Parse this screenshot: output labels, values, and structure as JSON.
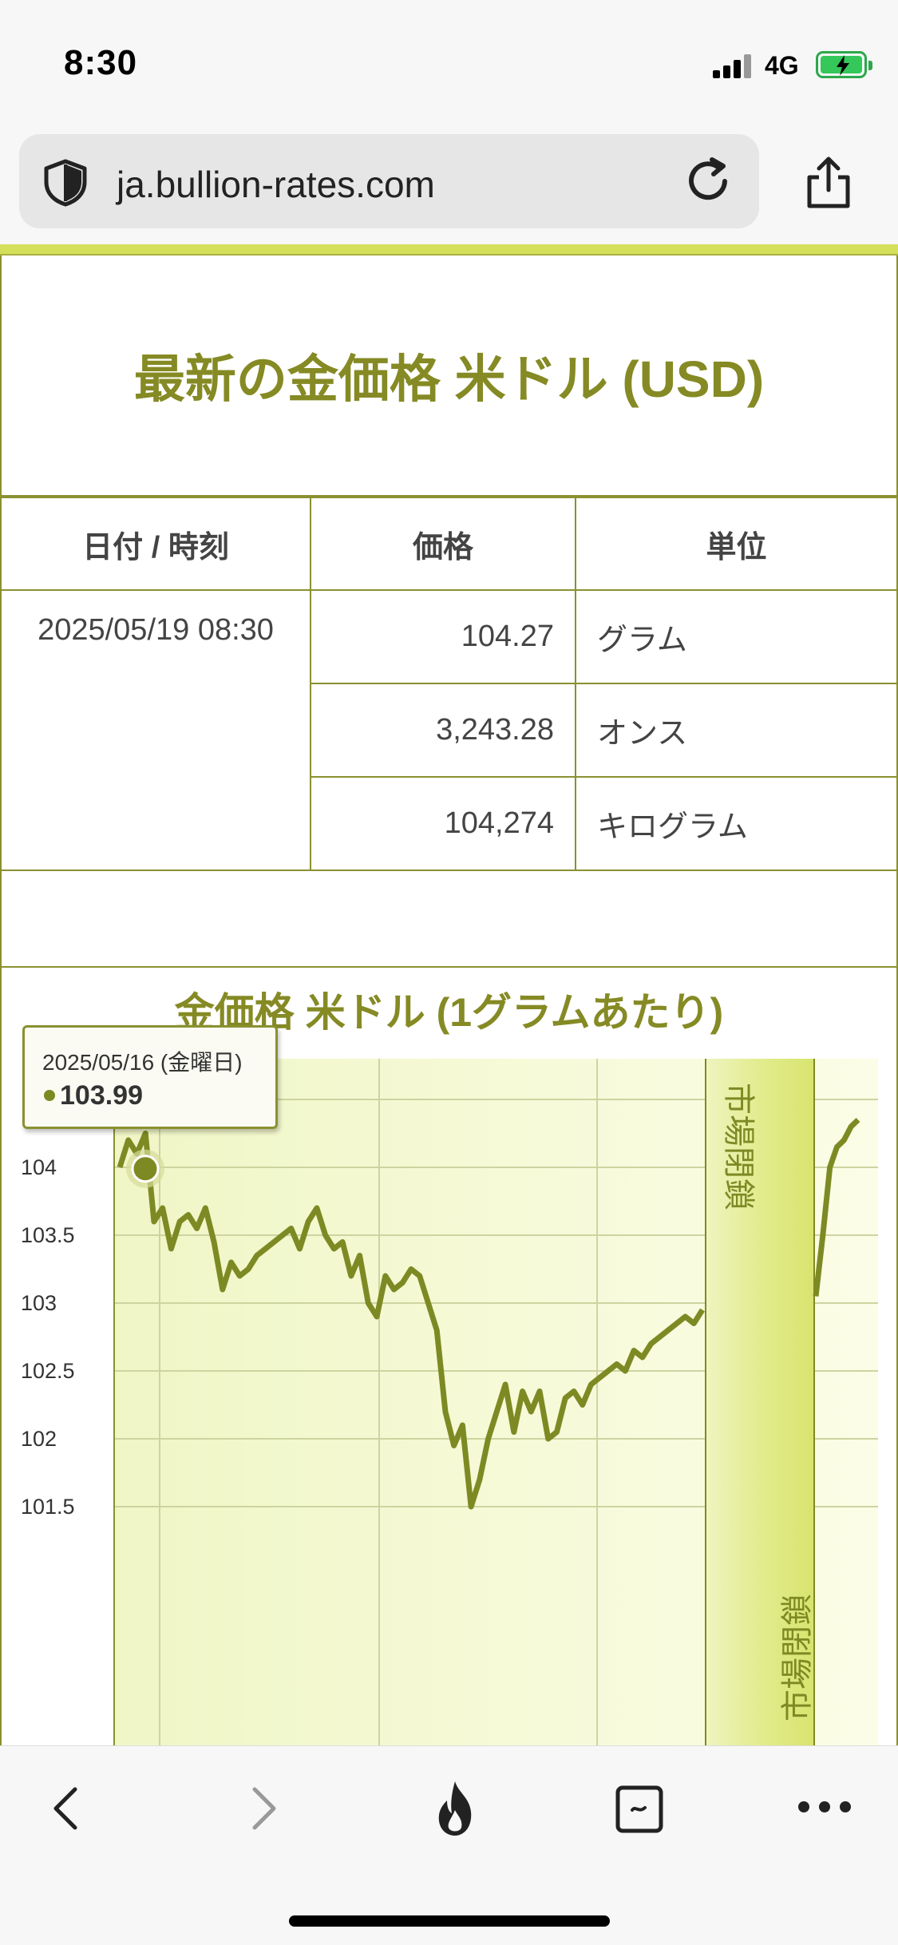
{
  "status": {
    "time": "8:30",
    "network": "4G"
  },
  "browser": {
    "url": "ja.bullion-rates.com"
  },
  "page": {
    "title": "最新の金価格 米ドル (USD)",
    "table": {
      "headers": [
        "日付 / 時刻",
        "価格",
        "単位"
      ],
      "date": "2025/05/19 08:30",
      "rows": [
        {
          "price": "104.27",
          "unit": "グラム"
        },
        {
          "price": "3,243.28",
          "unit": "オンス"
        },
        {
          "price": "104,274",
          "unit": "キログラム"
        }
      ]
    }
  },
  "chart_data": {
    "type": "line",
    "title": "金価格 米ドル (1グラムあたり)",
    "y_ticks": [
      "104",
      "103.5",
      "103",
      "102.5",
      "102",
      "101.5"
    ],
    "ylim": [
      101.4,
      104.5
    ],
    "grid": true,
    "annotations": [
      "市場閉鎖",
      "市場閉鎖"
    ],
    "tooltip": {
      "date": "2025/05/16 (金曜日)",
      "value": "103.99"
    },
    "series": [
      {
        "values": [
          104.0,
          104.2,
          104.1,
          104.25,
          103.6,
          103.7,
          103.4,
          103.6,
          103.65,
          103.55,
          103.7,
          103.45,
          103.1,
          103.3,
          103.2,
          103.25,
          103.35,
          103.4,
          103.45,
          103.5,
          103.55,
          103.4,
          103.6,
          103.7,
          103.5,
          103.4,
          103.45,
          103.2,
          103.35,
          103.0,
          102.9,
          103.2,
          103.1,
          103.15,
          103.25,
          103.2,
          103.0,
          102.8,
          102.2,
          101.95,
          102.1,
          101.5,
          101.7,
          102.0,
          102.2,
          102.4,
          102.05,
          102.35,
          102.2,
          102.35,
          102.0,
          102.05,
          102.3,
          102.35,
          102.25,
          102.4,
          102.45,
          102.5,
          102.55,
          102.5,
          102.65,
          102.6,
          102.7,
          102.75,
          102.8,
          102.85,
          102.9,
          102.85,
          102.95,
          103.05,
          103.5,
          104.0,
          104.15,
          104.2,
          104.3,
          104.35
        ]
      }
    ]
  }
}
